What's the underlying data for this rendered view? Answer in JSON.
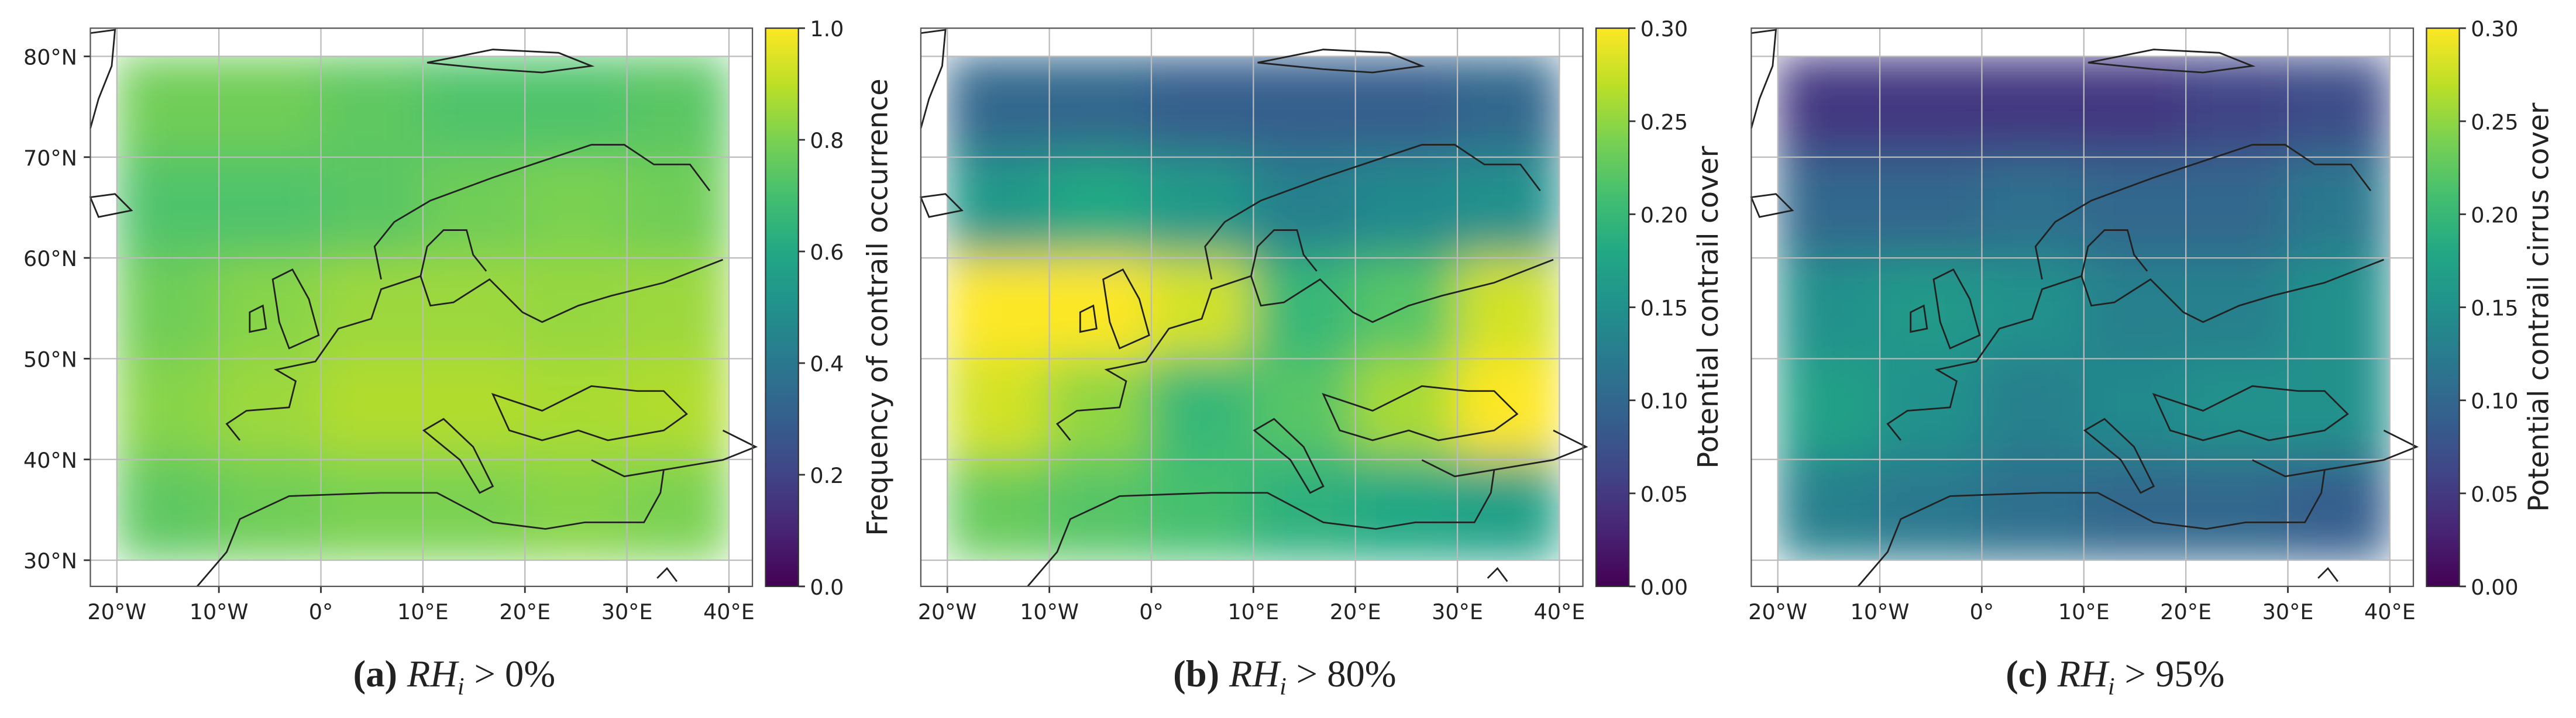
{
  "chart_data": [
    {
      "type": "heatmap",
      "grid": true,
      "xlim": [
        -22.6,
        42.3
      ],
      "ylim": [
        27.4,
        82.8
      ],
      "xticks": [
        {
          "value": -20,
          "label": "20°W"
        },
        {
          "value": -10,
          "label": "10°W"
        },
        {
          "value": 0,
          "label": "0°"
        },
        {
          "value": 10,
          "label": "10°E"
        },
        {
          "value": 20,
          "label": "20°E"
        },
        {
          "value": 30,
          "label": "30°E"
        },
        {
          "value": 40,
          "label": "40°E"
        }
      ],
      "yticks": [
        {
          "value": 30,
          "label": "30°N"
        },
        {
          "value": 40,
          "label": "40°N"
        },
        {
          "value": 50,
          "label": "50°N"
        },
        {
          "value": 60,
          "label": "60°N"
        },
        {
          "value": 70,
          "label": "70°N"
        },
        {
          "value": 80,
          "label": "80°N"
        }
      ],
      "lon_bins": [
        -20,
        -10,
        0,
        10,
        20,
        30,
        40
      ],
      "lat_bins": [
        80,
        70,
        60,
        50,
        40,
        30
      ],
      "values": [
        [
          0.78,
          0.78,
          0.75,
          0.72,
          0.72,
          0.74
        ],
        [
          0.72,
          0.72,
          0.74,
          0.78,
          0.8,
          0.78
        ],
        [
          0.78,
          0.82,
          0.85,
          0.85,
          0.84,
          0.85
        ],
        [
          0.82,
          0.85,
          0.88,
          0.88,
          0.87,
          0.88
        ],
        [
          0.75,
          0.78,
          0.8,
          0.8,
          0.82,
          0.8
        ]
      ],
      "colorbar": {
        "label": "Frequency of contrail occurrence",
        "lim": [
          0,
          1
        ],
        "ticks": [
          {
            "value": 0,
            "label": "0.0"
          },
          0.2,
          0.4,
          0.6,
          0.8,
          {
            "value": 1,
            "label": "1.0"
          }
        ]
      },
      "caption": {
        "label": "(a)",
        "var": "RH",
        "sub": "i",
        "cond": "> 0%"
      }
    },
    {
      "type": "heatmap",
      "grid": true,
      "xlim": [
        -22.6,
        42.3
      ],
      "ylim": [
        27.4,
        82.8
      ],
      "xticks": [
        {
          "value": -20,
          "label": "20°W"
        },
        {
          "value": -10,
          "label": "10°W"
        },
        {
          "value": 0,
          "label": "0°"
        },
        {
          "value": 10,
          "label": "10°E"
        },
        {
          "value": 20,
          "label": "20°E"
        },
        {
          "value": 30,
          "label": "30°E"
        },
        {
          "value": 40,
          "label": "40°E"
        }
      ],
      "yticks": [
        30,
        40,
        50,
        60,
        70,
        80
      ],
      "lon_bins": [
        -20,
        -10,
        0,
        10,
        20,
        30,
        40
      ],
      "lat_bins": [
        80,
        70,
        60,
        50,
        40,
        30
      ],
      "values": [
        [
          0.1,
          0.1,
          0.09,
          0.09,
          0.09,
          0.1
        ],
        [
          0.16,
          0.18,
          0.16,
          0.13,
          0.14,
          0.15
        ],
        [
          0.3,
          0.3,
          0.28,
          0.2,
          0.22,
          0.28
        ],
        [
          0.28,
          0.25,
          0.2,
          0.22,
          0.26,
          0.3
        ],
        [
          0.23,
          0.22,
          0.21,
          0.19,
          0.18,
          0.17
        ]
      ],
      "colorbar": {
        "label": "Potential contrail cover",
        "lim": [
          0,
          0.3
        ],
        "ticks": [
          {
            "value": 0,
            "label": "0.00"
          },
          0.05,
          {
            "value": 0.1,
            "label": "0.10"
          },
          0.15,
          {
            "value": 0.2,
            "label": "0.20"
          },
          0.25,
          {
            "value": 0.3,
            "label": "0.30"
          }
        ]
      },
      "caption": {
        "label": "(b)",
        "var": "RH",
        "sub": "i",
        "cond": "> 80%"
      }
    },
    {
      "type": "heatmap",
      "grid": true,
      "xlim": [
        -22.6,
        42.3
      ],
      "ylim": [
        27.4,
        82.8
      ],
      "xticks": [
        {
          "value": -20,
          "label": "20°W"
        },
        {
          "value": -10,
          "label": "10°W"
        },
        {
          "value": 0,
          "label": "0°"
        },
        {
          "value": 10,
          "label": "10°E"
        },
        {
          "value": 20,
          "label": "20°E"
        },
        {
          "value": 30,
          "label": "30°E"
        },
        {
          "value": 40,
          "label": "40°E"
        }
      ],
      "yticks": [
        30,
        40,
        50,
        60,
        70,
        80
      ],
      "lon_bins": [
        -20,
        -10,
        0,
        10,
        20,
        30,
        40
      ],
      "lat_bins": [
        80,
        70,
        60,
        50,
        40,
        30
      ],
      "values": [
        [
          0.05,
          0.05,
          0.05,
          0.05,
          0.06,
          0.07
        ],
        [
          0.1,
          0.1,
          0.11,
          0.1,
          0.1,
          0.12
        ],
        [
          0.15,
          0.16,
          0.15,
          0.13,
          0.13,
          0.15
        ],
        [
          0.17,
          0.15,
          0.13,
          0.14,
          0.15,
          0.15
        ],
        [
          0.13,
          0.12,
          0.11,
          0.1,
          0.1,
          0.09
        ]
      ],
      "colorbar": {
        "label": "Potential contrail cirrus cover",
        "lim": [
          0,
          0.3
        ],
        "ticks": [
          {
            "value": 0,
            "label": "0.00"
          },
          0.05,
          {
            "value": 0.1,
            "label": "0.10"
          },
          0.15,
          {
            "value": 0.2,
            "label": "0.20"
          },
          0.25,
          {
            "value": 0.3,
            "label": "0.30"
          }
        ]
      },
      "caption": {
        "label": "(c)",
        "var": "RH",
        "sub": "i",
        "cond": "> 95%"
      }
    }
  ]
}
